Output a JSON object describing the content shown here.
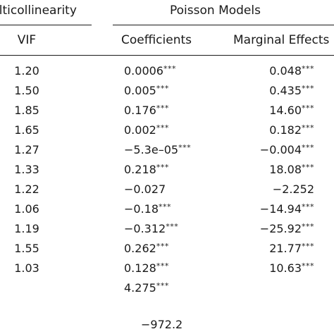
{
  "headers": {
    "group_left": "ulticollinearity",
    "group_right": "Poisson Models",
    "col_vif": "VIF",
    "col_coef": "Coefficients",
    "col_me": "Marginal Effects"
  },
  "rows": [
    {
      "vif": "1.20",
      "coef": "0.0006",
      "coef_sig": "***",
      "me": "0.048",
      "me_sig": "***"
    },
    {
      "vif": "1.50",
      "coef": "0.005",
      "coef_sig": "***",
      "me": "0.435",
      "me_sig": "***"
    },
    {
      "vif": "1.85",
      "coef": "0.176",
      "coef_sig": "***",
      "me": "14.60",
      "me_sig": "***"
    },
    {
      "vif": "1.65",
      "coef": "0.002",
      "coef_sig": "***",
      "me": "0.182",
      "me_sig": "***"
    },
    {
      "vif": "1.27",
      "coef": "−5.3e–05",
      "coef_sig": "***",
      "me": "−0.004",
      "me_sig": "***"
    },
    {
      "vif": "1.33",
      "coef": "0.218",
      "coef_sig": "***",
      "me": "18.08",
      "me_sig": "***"
    },
    {
      "vif": "1.22",
      "coef": "−0.027",
      "coef_sig": "",
      "me": "−2.252",
      "me_sig": ""
    },
    {
      "vif": "1.06",
      "coef": "−0.18",
      "coef_sig": "***",
      "me": "−14.94",
      "me_sig": "***"
    },
    {
      "vif": "1.19",
      "coef": "−0.312",
      "coef_sig": "***",
      "me": "−25.92",
      "me_sig": "***"
    },
    {
      "vif": "1.55",
      "coef": "0.262",
      "coef_sig": "***",
      "me": "21.77",
      "me_sig": "***"
    },
    {
      "vif": "1.03",
      "coef": "0.128",
      "coef_sig": "***",
      "me": "10.63",
      "me_sig": "***"
    }
  ],
  "extra_rows": [
    {
      "coef": "4.275",
      "coef_sig": "***"
    },
    {
      "coef": "−972.2",
      "coef_sig": ""
    }
  ]
}
